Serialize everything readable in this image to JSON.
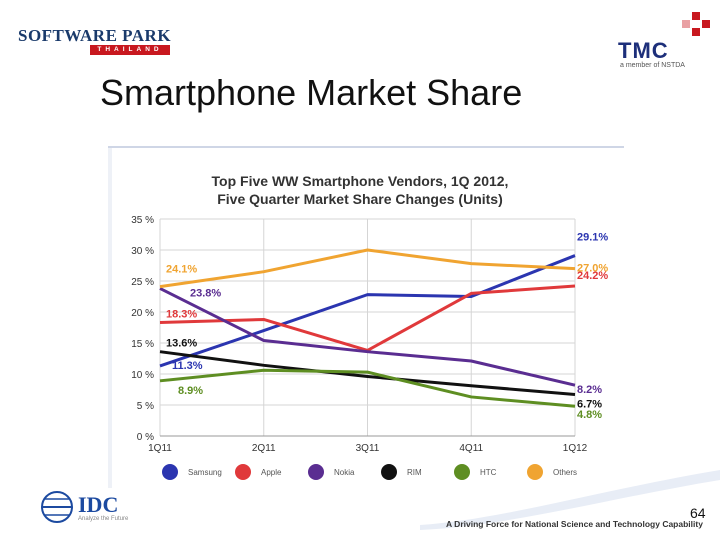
{
  "logos": {
    "software_park": {
      "main": "SOFTWARE PARK",
      "sub": "THAILAND"
    },
    "tmc": {
      "main": "TMC",
      "sub": "a member of NSTDA"
    },
    "idc": {
      "main": "IDC",
      "sub": "Analyze the Future"
    }
  },
  "slide": {
    "title": "Smartphone Market Share",
    "footer": "A Driving Force for National Science and Technology Capability",
    "page_number": "64"
  },
  "chart_data": {
    "type": "line",
    "title": "Top Five WW Smartphone Vendors, 1Q 2012,",
    "subtitle": "Five Quarter Market Share Changes (Units)",
    "categories": [
      "1Q11",
      "2Q11",
      "3Q11",
      "4Q11",
      "1Q12"
    ],
    "y_ticks": [
      "0 %",
      "5 %",
      "10 %",
      "15 %",
      "20 %",
      "25 %",
      "30 %",
      "35 %"
    ],
    "ylim": [
      0,
      35
    ],
    "grid": true,
    "legend_position": "bottom",
    "series": [
      {
        "name": "Samsung",
        "color": "#2b35b0",
        "values": [
          11.3,
          17.0,
          22.8,
          22.5,
          29.1
        ],
        "start_label": "11.3%",
        "end_label": "29.1%"
      },
      {
        "name": "Apple",
        "color": "#e0393b",
        "values": [
          18.3,
          18.8,
          13.8,
          23.0,
          24.2
        ],
        "start_label": "18.3%",
        "end_label": "24.2%"
      },
      {
        "name": "Nokia",
        "color": "#5a2d91",
        "values": [
          23.8,
          15.4,
          13.6,
          12.1,
          8.2
        ],
        "start_label": "23.8%",
        "end_label": "8.2%"
      },
      {
        "name": "RIM",
        "color": "#111111",
        "values": [
          13.6,
          11.4,
          9.6,
          8.1,
          6.7
        ],
        "start_label": "13.6%",
        "end_label": "6.7%"
      },
      {
        "name": "HTC",
        "color": "#5e8e22",
        "values": [
          8.9,
          10.6,
          10.3,
          6.3,
          4.8
        ],
        "start_label": "8.9%",
        "end_label": "4.8%"
      },
      {
        "name": "Others",
        "color": "#f0a431",
        "values": [
          24.1,
          26.5,
          30.0,
          27.8,
          27.0
        ],
        "start_label": "24.1%",
        "end_label": "27.0%"
      }
    ]
  }
}
